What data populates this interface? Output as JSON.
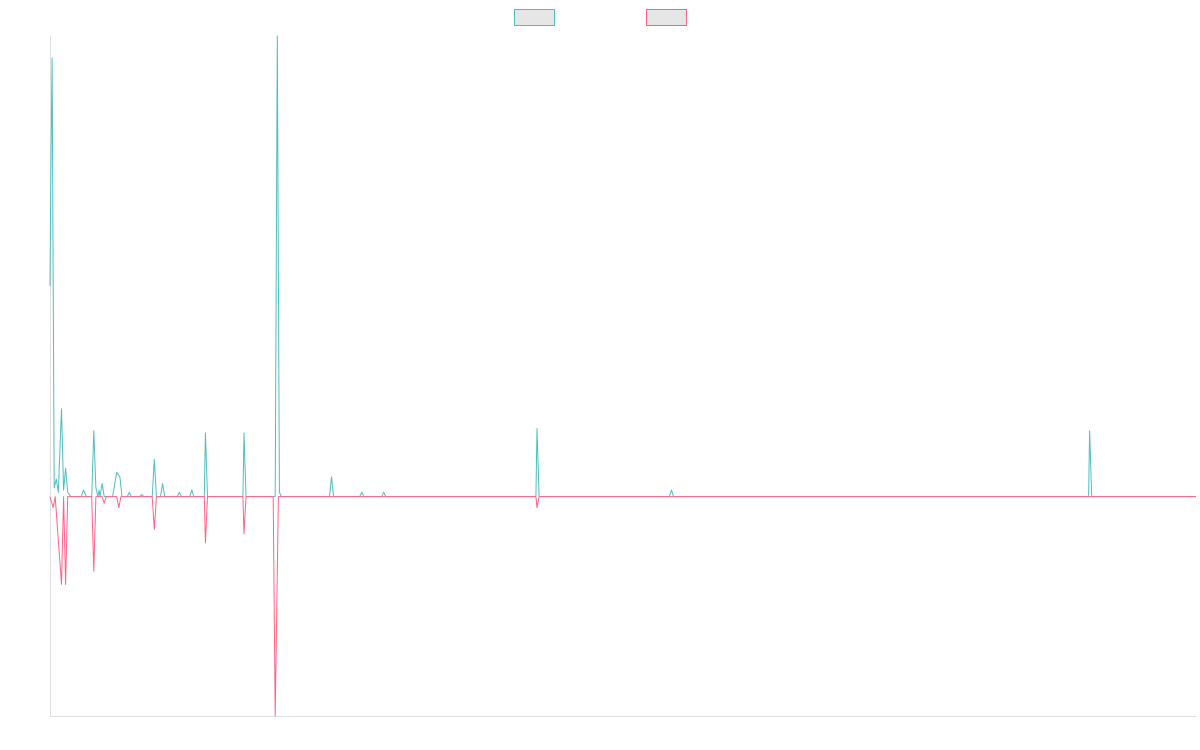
{
  "chart_data": {
    "type": "line",
    "title": "",
    "xlabel": "",
    "ylabel": "",
    "grid": false,
    "legend": {
      "placement": "top-center"
    },
    "x_domain": [
      0,
      1099
    ],
    "ylim": [
      -1.0,
      2.1
    ],
    "series": [
      {
        "color": "#4bc0c0",
        "fill": "#e6e6e6",
        "points": [
          [
            0,
            0.96
          ],
          [
            1,
            1.55
          ],
          [
            2,
            2.0
          ],
          [
            4,
            0.04
          ],
          [
            6,
            0.08
          ],
          [
            8,
            0.02
          ],
          [
            11,
            0.4
          ],
          [
            13,
            0.03
          ],
          [
            15,
            0.13
          ],
          [
            17,
            0.02
          ],
          [
            20,
            0.0
          ],
          [
            30,
            0.0
          ],
          [
            32,
            0.03
          ],
          [
            35,
            0.0
          ],
          [
            40,
            0.0
          ],
          [
            42,
            0.3
          ],
          [
            44,
            0.04
          ],
          [
            46,
            0.0
          ],
          [
            47,
            0.03
          ],
          [
            48,
            0.0
          ],
          [
            50,
            0.06
          ],
          [
            52,
            0.0
          ],
          [
            60,
            0.0
          ],
          [
            64,
            0.11
          ],
          [
            67,
            0.09
          ],
          [
            69,
            0.0
          ],
          [
            74,
            0.0
          ],
          [
            76,
            0.02
          ],
          [
            78,
            0.0
          ],
          [
            86,
            0.0
          ],
          [
            88,
            0.01
          ],
          [
            90,
            0.0
          ],
          [
            98,
            0.0
          ],
          [
            100,
            0.17
          ],
          [
            102,
            0.0
          ],
          [
            106,
            0.0
          ],
          [
            108,
            0.06
          ],
          [
            110,
            0.0
          ],
          [
            122,
            0.0
          ],
          [
            124,
            0.02
          ],
          [
            126,
            0.0
          ],
          [
            134,
            0.0
          ],
          [
            136,
            0.03
          ],
          [
            138,
            0.0
          ],
          [
            148,
            0.0
          ],
          [
            149,
            0.29
          ],
          [
            151,
            0.0
          ],
          [
            185,
            0.0
          ],
          [
            186,
            0.29
          ],
          [
            188,
            0.0
          ],
          [
            216,
            0.0
          ],
          [
            218,
            2.1
          ],
          [
            220,
            0.02
          ],
          [
            222,
            0.0
          ],
          [
            268,
            0.0
          ],
          [
            270,
            0.09
          ],
          [
            272,
            0.0
          ],
          [
            297,
            0.0
          ],
          [
            299,
            0.02
          ],
          [
            301,
            0.0
          ],
          [
            318,
            0.0
          ],
          [
            320,
            0.02
          ],
          [
            322,
            0.0
          ],
          [
            466,
            0.0
          ],
          [
            467,
            0.31
          ],
          [
            469,
            0.0
          ],
          [
            594,
            0.0
          ],
          [
            596,
            0.03
          ],
          [
            598,
            0.0
          ],
          [
            996,
            0.0
          ],
          [
            997,
            0.3
          ],
          [
            999,
            0.0
          ],
          [
            1099,
            0.0
          ]
        ]
      },
      {
        "color": "#ff6384",
        "fill": "#e6e6e6",
        "points": [
          [
            0,
            0.0
          ],
          [
            3,
            -0.05
          ],
          [
            5,
            0.0
          ],
          [
            11,
            -0.4
          ],
          [
            13,
            0.0
          ],
          [
            15,
            -0.4
          ],
          [
            17,
            0.0
          ],
          [
            40,
            0.0
          ],
          [
            42,
            -0.34
          ],
          [
            44,
            0.0
          ],
          [
            50,
            0.0
          ],
          [
            52,
            -0.03
          ],
          [
            54,
            0.0
          ],
          [
            64,
            0.0
          ],
          [
            66,
            -0.05
          ],
          [
            68,
            0.0
          ],
          [
            98,
            0.0
          ],
          [
            100,
            -0.15
          ],
          [
            102,
            0.0
          ],
          [
            148,
            0.0
          ],
          [
            149,
            -0.21
          ],
          [
            151,
            0.0
          ],
          [
            185,
            0.0
          ],
          [
            186,
            -0.17
          ],
          [
            188,
            0.0
          ],
          [
            214,
            0.0
          ],
          [
            216,
            -1.0
          ],
          [
            219,
            0.0
          ],
          [
            466,
            0.0
          ],
          [
            467,
            -0.05
          ],
          [
            469,
            0.0
          ],
          [
            1099,
            0.0
          ]
        ]
      }
    ]
  }
}
